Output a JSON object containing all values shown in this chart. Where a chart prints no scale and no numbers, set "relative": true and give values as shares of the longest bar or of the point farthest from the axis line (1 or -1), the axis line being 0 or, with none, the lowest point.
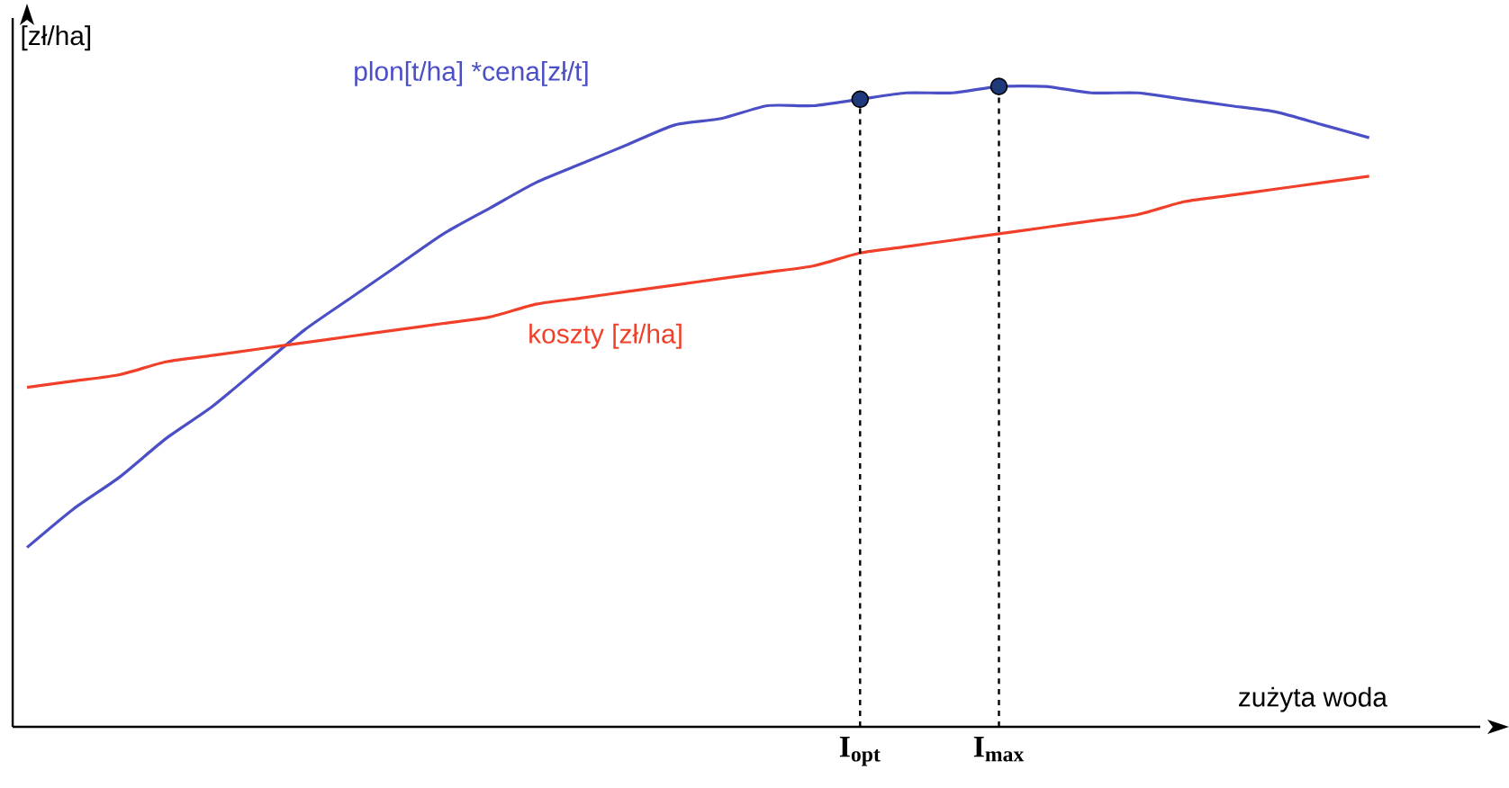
{
  "chart_data": {
    "type": "line",
    "relative": true,
    "ylabel": "[zł/ha]",
    "xlabel": "zużyta woda",
    "categories": [
      null,
      null,
      null,
      null,
      null,
      null,
      null,
      null,
      null,
      null,
      null,
      null,
      null,
      null,
      null,
      null,
      null,
      null,
      "I$_{opt}$",
      null,
      null,
      "I$_{max}$",
      null,
      null,
      null,
      null,
      null,
      null,
      null,
      null
    ],
    "series": [
      {
        "name": "plon[t/ha] *cena[zł/t]",
        "color": "#4b4fc6",
        "marker": "none",
        "line_style": "solid",
        "values": [
          0.28,
          0.34,
          0.39,
          0.45,
          0.5,
          0.56,
          0.62,
          0.67,
          0.72,
          0.77,
          0.81,
          0.85,
          0.88,
          0.91,
          0.94,
          0.95,
          0.97,
          0.97,
          0.98,
          0.99,
          0.99,
          1.0,
          1.0,
          0.99,
          0.99,
          0.98,
          0.97,
          0.96,
          0.94,
          0.92
        ]
      },
      {
        "name": "koszty [zł/ha]",
        "color": "#f0402a",
        "marker": "none",
        "line_style": "solid",
        "values": [
          0.53,
          0.54,
          0.55,
          0.57,
          0.58,
          0.59,
          0.6,
          0.61,
          0.62,
          0.63,
          0.64,
          0.66,
          0.67,
          0.68,
          0.69,
          0.7,
          0.71,
          0.72,
          0.74,
          0.75,
          0.76,
          0.77,
          0.78,
          0.79,
          0.8,
          0.82,
          0.83,
          0.84,
          0.85,
          0.86
        ]
      },
      {
        "color": "#1f3a7a",
        "type": "scatter",
        "marker": "circle",
        "values": [
          null,
          null,
          null,
          null,
          null,
          null,
          null,
          null,
          null,
          null,
          null,
          null,
          null,
          null,
          null,
          null,
          null,
          null,
          0.98,
          null,
          null,
          1.0,
          null,
          null,
          null,
          null,
          null,
          null,
          null,
          null
        ]
      }
    ],
    "ref_lines": [
      {
        "axis": "x",
        "value": "I$_{opt}$",
        "color": "#000000",
        "line_style": "dashed"
      },
      {
        "axis": "x",
        "value": "I$_{max}$",
        "color": "#000000",
        "line_style": "dashed"
      }
    ]
  }
}
